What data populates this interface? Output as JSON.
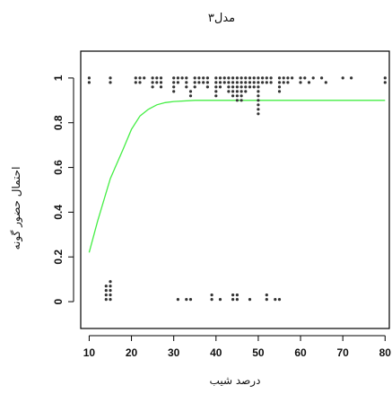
{
  "chart_data": {
    "type": "scatter",
    "title": "مدل۳",
    "xlabel": "درصد شیب",
    "ylabel": "احتمال حضور گونه",
    "xlim": [
      8,
      81
    ],
    "ylim": [
      -0.12,
      1.12
    ],
    "xticks": [
      10,
      20,
      30,
      40,
      50,
      60,
      70,
      80
    ],
    "yticks": [
      0,
      0.2,
      0.4,
      0.6,
      0.8,
      1
    ],
    "ytick_labels": [
      "0",
      "0.2",
      "0.4",
      "0.6",
      "0.8",
      "1"
    ],
    "grid": false,
    "colors": {
      "fit_line": "#44ee44",
      "points": "#333333",
      "axis": "#000000"
    },
    "series": [
      {
        "kind": "line",
        "x": [
          10,
          12,
          15,
          18,
          20,
          22,
          24,
          26,
          28,
          30,
          35,
          40,
          50,
          60,
          70,
          80
        ],
        "y": [
          0.22,
          0.36,
          0.55,
          0.68,
          0.77,
          0.83,
          0.86,
          0.88,
          0.89,
          0.895,
          0.9,
          0.9,
          0.9,
          0.9,
          0.9,
          0.9
        ]
      },
      {
        "kind": "points",
        "x": [
          10,
          10,
          15,
          15,
          21,
          21,
          22,
          22,
          23,
          25,
          25,
          25,
          26,
          26,
          27,
          27,
          27,
          30,
          30,
          30,
          30,
          31,
          31,
          32,
          33,
          33,
          33,
          34,
          34,
          35,
          35,
          35,
          36,
          36,
          37,
          37,
          38,
          38,
          38,
          40,
          40,
          40,
          40,
          40,
          41,
          41,
          41,
          42,
          42,
          43,
          43,
          43,
          43,
          44,
          44,
          44,
          44,
          44,
          45,
          45,
          45,
          45,
          45,
          45,
          46,
          46,
          46,
          46,
          46,
          46,
          47,
          47,
          47,
          47,
          48,
          48,
          48,
          49,
          49,
          49,
          50,
          50,
          50,
          50,
          50,
          50,
          50,
          50,
          50,
          51,
          51,
          52,
          52,
          53,
          53,
          55,
          55,
          55,
          55,
          56,
          56,
          57,
          57,
          58,
          60,
          60,
          61,
          62,
          63,
          65,
          66,
          70,
          72,
          80,
          80,
          14,
          14,
          14,
          14,
          15,
          15,
          15,
          15,
          15,
          31,
          33,
          34,
          39,
          39,
          41,
          44,
          44,
          45,
          45,
          48,
          52,
          52,
          54,
          55
        ],
        "y": [
          1,
          0.98,
          1,
          0.98,
          1,
          0.98,
          1,
          0.98,
          1,
          1,
          0.98,
          0.96,
          1,
          0.98,
          1,
          0.98,
          0.96,
          1,
          0.98,
          0.96,
          0.94,
          1,
          0.98,
          1,
          1,
          0.98,
          0.96,
          0.94,
          0.92,
          1,
          0.98,
          0.96,
          1,
          0.98,
          1,
          0.98,
          1,
          0.98,
          0.96,
          1,
          0.98,
          0.96,
          0.94,
          0.92,
          1,
          0.98,
          0.96,
          1,
          0.98,
          1,
          0.98,
          0.96,
          0.94,
          1,
          0.98,
          0.96,
          0.94,
          0.92,
          1,
          0.98,
          0.96,
          0.94,
          0.92,
          0.9,
          1,
          0.98,
          0.96,
          0.94,
          0.92,
          0.9,
          1,
          0.98,
          0.96,
          0.94,
          1,
          0.98,
          0.96,
          1,
          0.98,
          0.96,
          1,
          0.98,
          0.96,
          0.94,
          0.92,
          0.9,
          0.88,
          0.86,
          0.84,
          1,
          0.98,
          1,
          0.98,
          1,
          0.98,
          1,
          0.98,
          0.96,
          0.94,
          1,
          0.98,
          1,
          0.98,
          1,
          1,
          0.98,
          1,
          0.98,
          1,
          1,
          0.98,
          1,
          1,
          1,
          0.98,
          0.01,
          0.03,
          0.05,
          0.07,
          0.01,
          0.03,
          0.05,
          0.07,
          0.09,
          0.01,
          0.01,
          0.01,
          0.01,
          0.03,
          0.01,
          0.01,
          0.03,
          0.01,
          0.03,
          0.01,
          0.01,
          0.03,
          0.01,
          0.01
        ]
      }
    ]
  }
}
